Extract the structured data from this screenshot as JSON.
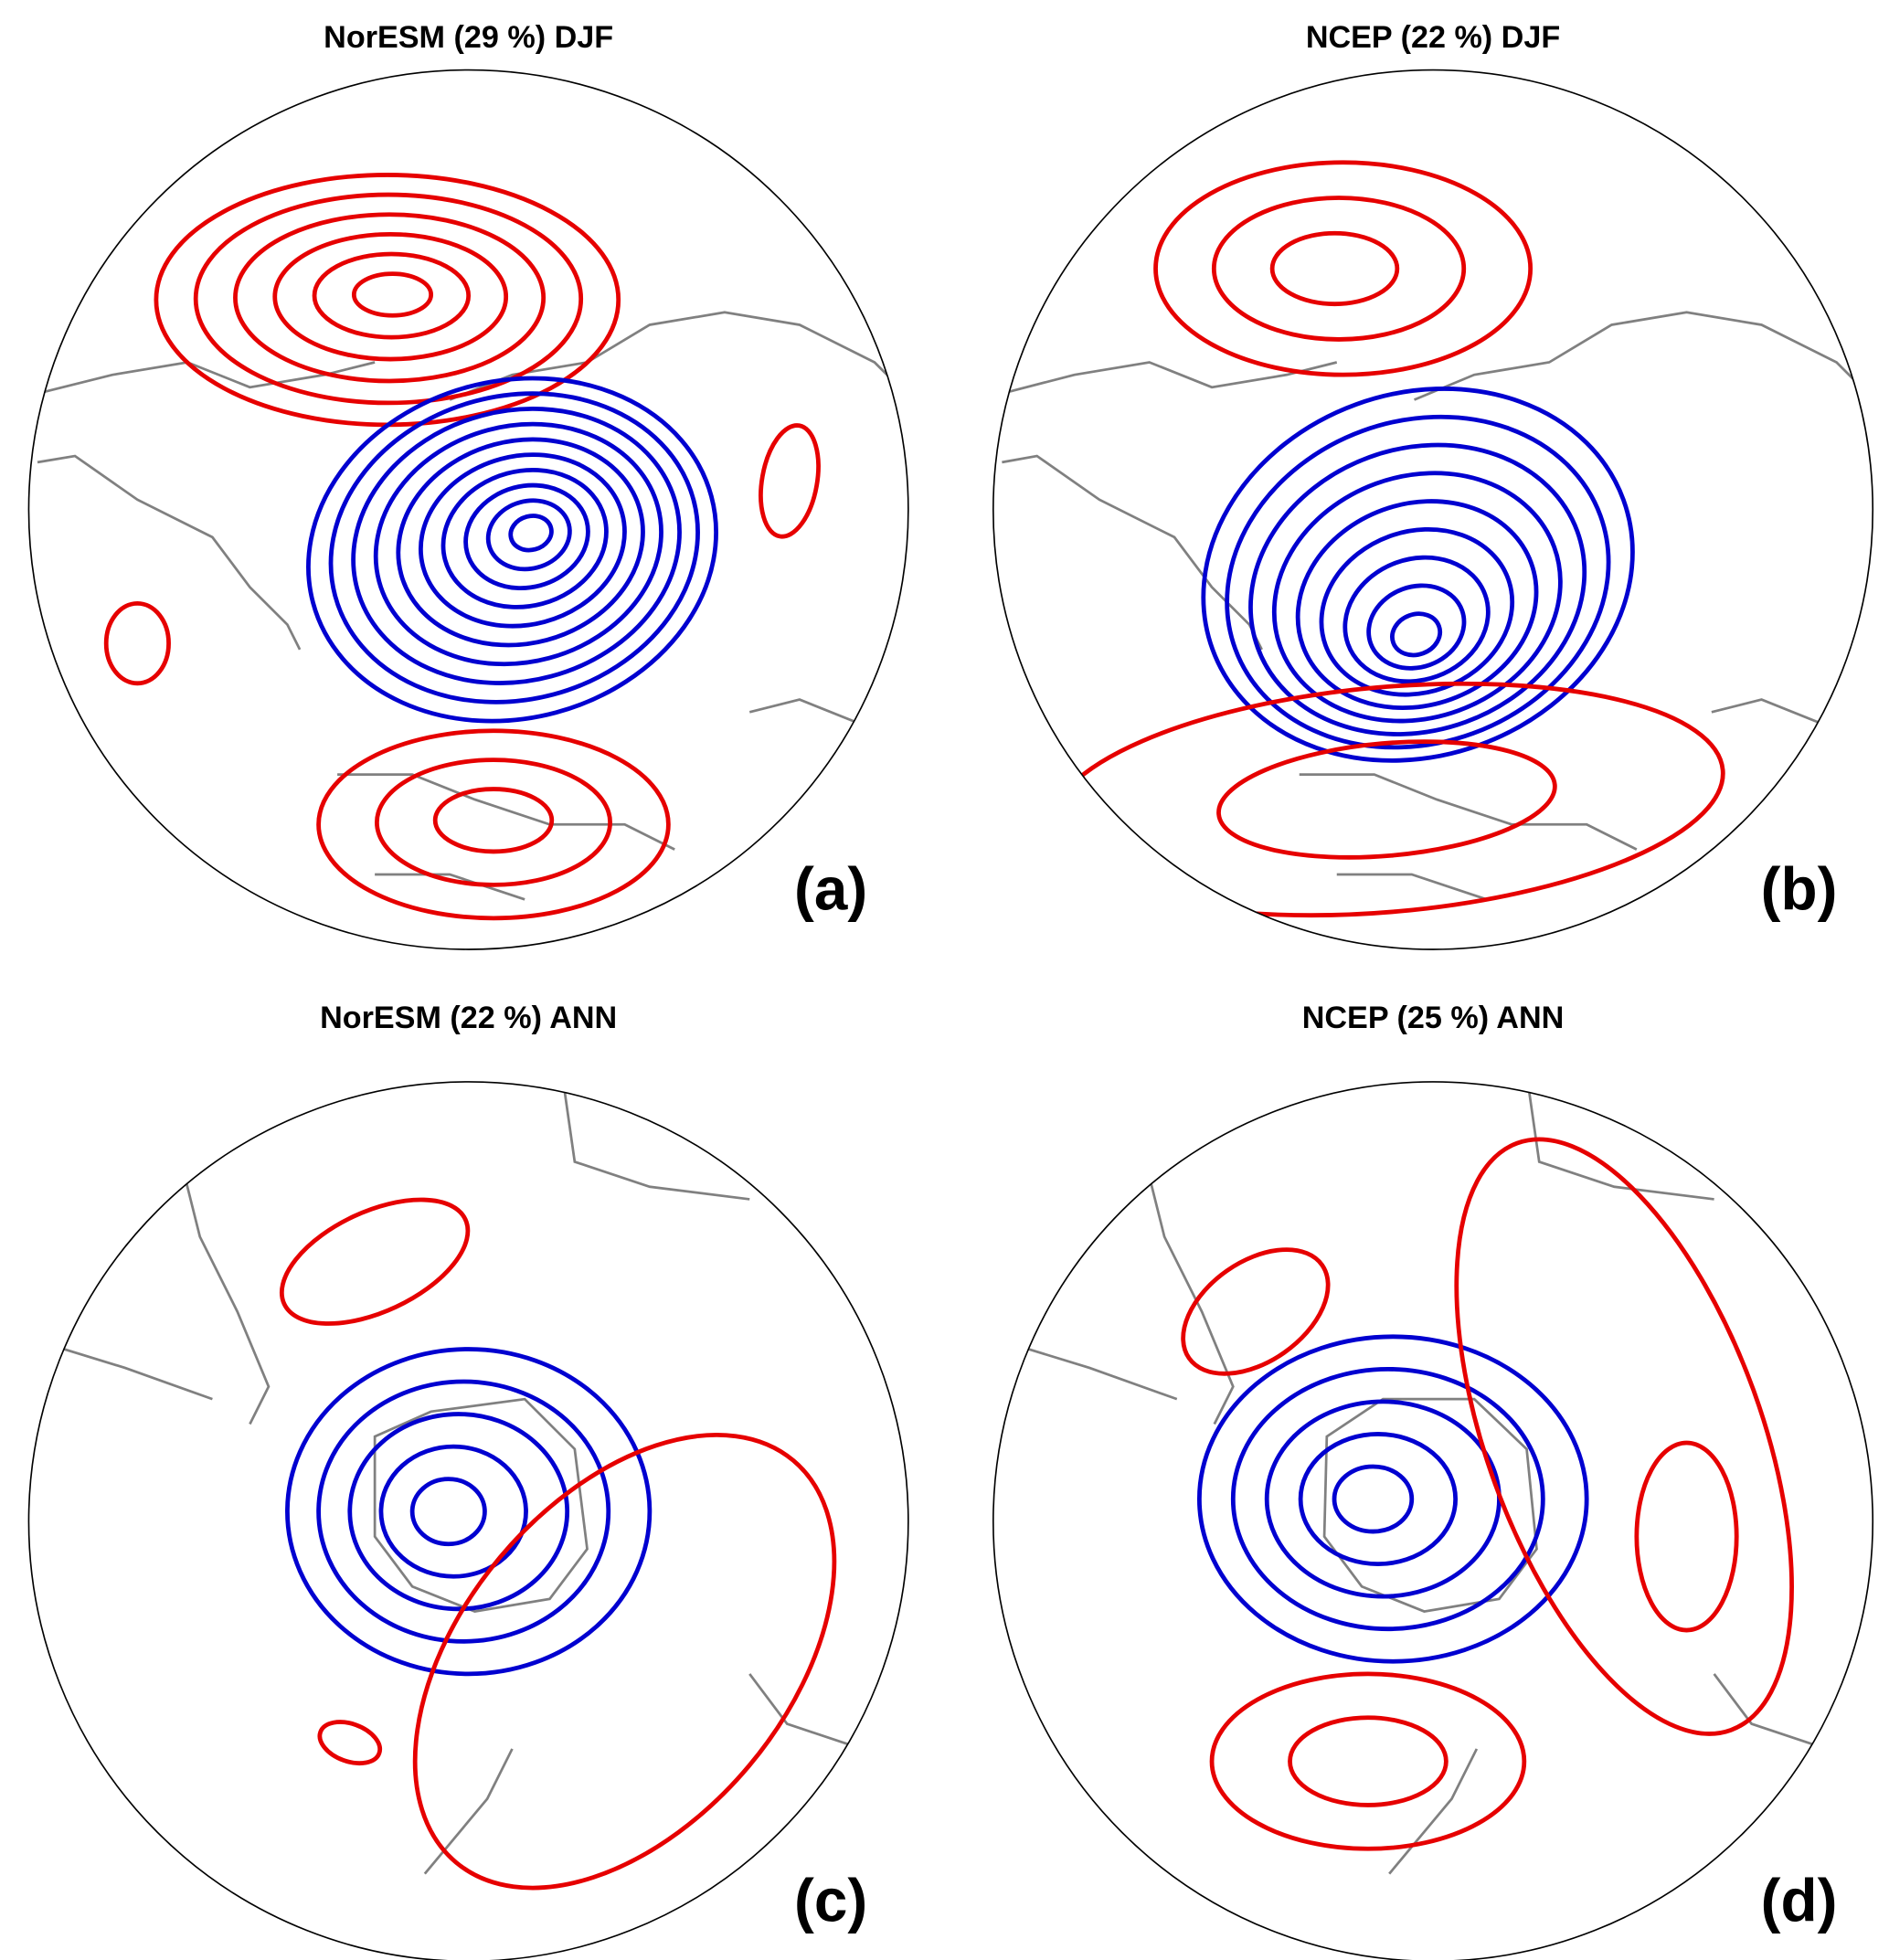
{
  "panels": [
    {
      "title": "NorESM (29 %) DJF",
      "label": "(a)"
    },
    {
      "title": "NCEP (22 %) DJF",
      "label": "(b)"
    },
    {
      "title": "NorESM (22 %) ANN",
      "label": "(c)"
    },
    {
      "title": "NCEP (25 %) ANN",
      "label": "(d)"
    }
  ]
}
